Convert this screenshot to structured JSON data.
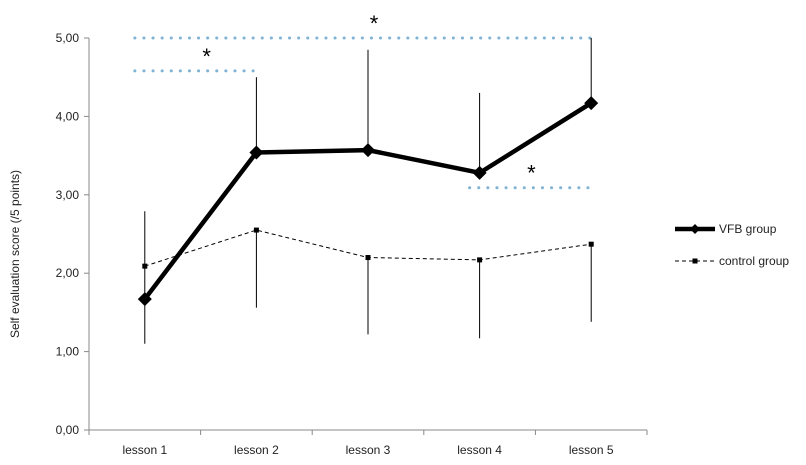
{
  "chart_data": {
    "type": "line",
    "title": "",
    "xlabel": "",
    "ylabel": "Self evaluation score (/5 points)",
    "categories": [
      "lesson 1",
      "lesson 2",
      "lesson 3",
      "lesson 4",
      "lesson 5"
    ],
    "ylim": [
      0,
      5
    ],
    "yticks": [
      0,
      1,
      2,
      3,
      4,
      5
    ],
    "ytick_labels": [
      "0,00",
      "1,00",
      "2,00",
      "3,00",
      "4,00",
      "5,00"
    ],
    "grid": false,
    "legend_position": "right",
    "series": [
      {
        "name": "VFB group",
        "style": "solid-thick",
        "marker": "diamond",
        "color": "#000000",
        "values": [
          1.67,
          3.54,
          3.57,
          3.28,
          4.17
        ],
        "error_upper": [
          2.79,
          4.5,
          4.85,
          4.3,
          5.0
        ],
        "error_lower": [
          1.1,
          3.54,
          3.57,
          3.28,
          4.17
        ]
      },
      {
        "name": "control group",
        "style": "dashed",
        "marker": "square",
        "color": "#000000",
        "values": [
          2.09,
          2.55,
          2.2,
          2.17,
          2.37
        ],
        "error_upper": [
          2.09,
          2.55,
          2.2,
          2.17,
          2.37
        ],
        "error_lower": [
          2.09,
          1.56,
          1.22,
          1.17,
          1.38
        ]
      }
    ],
    "significance": [
      {
        "label": "*",
        "from": "lesson 1",
        "to": "lesson 5",
        "level": 5.0
      },
      {
        "label": "*",
        "from": "lesson 1",
        "to": "lesson 2",
        "level": 4.58
      },
      {
        "label": "*",
        "from": "lesson 4",
        "to": "lesson 5",
        "level": 3.09
      }
    ],
    "significance_color": "#7fb3d5"
  }
}
